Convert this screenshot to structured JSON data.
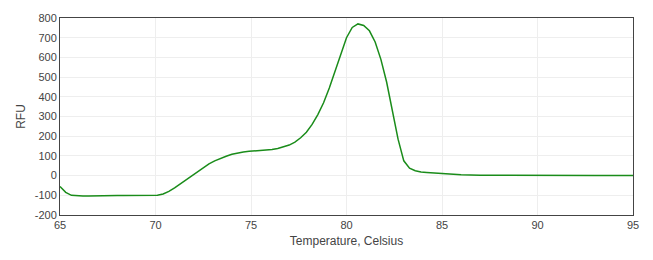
{
  "chart_data": {
    "type": "line",
    "xlabel": "Temperature, Celsius",
    "ylabel": "RFU",
    "x": [
      65.0,
      65.3,
      65.6,
      65.9,
      66.2,
      66.5,
      66.8,
      67.1,
      67.4,
      67.7,
      68.0,
      68.3,
      68.6,
      68.9,
      69.2,
      69.5,
      69.8,
      70.1,
      70.4,
      70.7,
      71.0,
      71.3,
      71.6,
      71.9,
      72.2,
      72.5,
      72.8,
      73.1,
      73.4,
      73.7,
      74.0,
      74.3,
      74.6,
      74.9,
      75.2,
      75.5,
      75.8,
      76.1,
      76.4,
      76.7,
      77.0,
      77.3,
      77.6,
      77.9,
      78.2,
      78.5,
      78.8,
      79.1,
      79.4,
      79.7,
      80.0,
      80.3,
      80.6,
      80.9,
      81.2,
      81.5,
      81.8,
      82.1,
      82.4,
      82.7,
      83.0,
      83.3,
      83.6,
      83.9,
      84.2,
      84.5,
      84.8,
      85.1,
      85.4,
      85.7,
      86.0,
      87.0,
      88.0,
      89.0,
      90.0,
      91.0,
      92.0,
      93.0,
      94.0,
      95.0
    ],
    "values": [
      -55,
      -85,
      -100,
      -103,
      -103,
      -103,
      -102,
      -101,
      -101,
      -101,
      -101,
      -101,
      -101,
      -101,
      -101,
      -101,
      -101,
      -100,
      -93,
      -80,
      -62,
      -42,
      -20,
      2,
      22,
      42,
      60,
      75,
      88,
      98,
      108,
      115,
      120,
      123,
      125,
      127,
      128,
      132,
      138,
      145,
      155,
      170,
      192,
      220,
      260,
      310,
      370,
      445,
      530,
      618,
      700,
      752,
      770,
      762,
      735,
      678,
      590,
      475,
      335,
      185,
      75,
      38,
      25,
      18,
      16,
      14,
      11,
      9,
      7,
      5,
      4,
      2,
      1,
      1,
      0,
      0,
      0,
      0,
      0,
      0
    ],
    "color": "#1a8c1a",
    "xlim": [
      65,
      95
    ],
    "ylim": [
      -200,
      800
    ],
    "xticks": [
      65,
      70,
      75,
      80,
      85,
      90,
      95
    ],
    "yticks": [
      -200,
      -100,
      0,
      100,
      200,
      300,
      400,
      500,
      600,
      700,
      800
    ],
    "grid": true
  }
}
